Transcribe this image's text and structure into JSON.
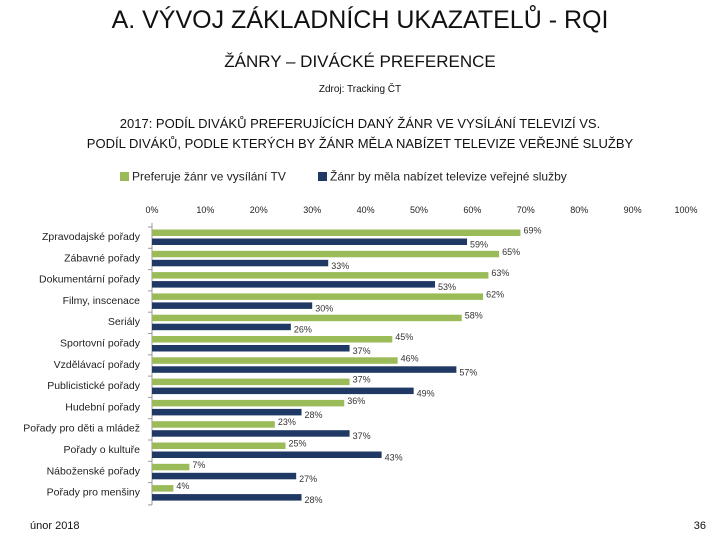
{
  "slide": {
    "title": "A. VÝVOJ ZÁKLADNÍCH UKAZATELŮ - RQI",
    "subtitle": "ŽÁNRY – DIVÁCKÉ PREFERENCE",
    "source": "Zdroj: Tracking ČT",
    "footer_date": "únor 2018",
    "page_number": "36"
  },
  "chart_data": {
    "type": "bar",
    "orientation": "horizontal",
    "title_line1": "2017: PODÍL DIVÁKŮ PREFERUJÍCÍCH DANÝ ŽÁNR VE VYSÍLÁNÍ TELEVIZÍ VS.",
    "title_line2": "PODÍL DIVÁKŮ, PODLE KTERÝCH BY ŽÁNR MĚLA NABÍZET TELEVIZE VEŘEJNÉ SLUŽBY",
    "xlim": [
      0,
      100
    ],
    "x_ticks": [
      "0%",
      "10%",
      "20%",
      "30%",
      "40%",
      "50%",
      "60%",
      "70%",
      "80%",
      "90%",
      "100%"
    ],
    "legend_position": "top",
    "grid": false,
    "categories": [
      "Zpravodajské pořady",
      "Zábavné pořady",
      "Dokumentární pořady",
      "Filmy, inscenace",
      "Seriály",
      "Sportovní pořady",
      "Vzdělávací pořady",
      "Publicistické pořady",
      "Hudební pořady",
      "Pořady pro děti a mládež",
      "Pořady o kultuře",
      "Náboženské pořady",
      "Pořady pro menšiny"
    ],
    "series": [
      {
        "name": "Preferuje žánr ve vysílání TV",
        "color": "#9bbb59",
        "values": [
          69,
          65,
          63,
          62,
          58,
          45,
          46,
          37,
          36,
          23,
          25,
          7,
          4
        ],
        "labels": [
          "69%",
          "65%",
          "63%",
          "62%",
          "58%",
          "45%",
          "46%",
          "37%",
          "36%",
          "23%",
          "25%",
          "7%",
          "4%"
        ]
      },
      {
        "name": "Žánr by měla nabízet televize veřejné služby",
        "color": "#1f3864",
        "values": [
          59,
          33,
          53,
          30,
          26,
          37,
          57,
          49,
          28,
          37,
          43,
          27,
          28
        ],
        "labels": [
          "59%",
          "33%",
          "53%",
          "30%",
          "26%",
          "37%",
          "57%",
          "49%",
          "28%",
          "37%",
          "43%",
          "27%",
          "28%"
        ]
      }
    ]
  }
}
